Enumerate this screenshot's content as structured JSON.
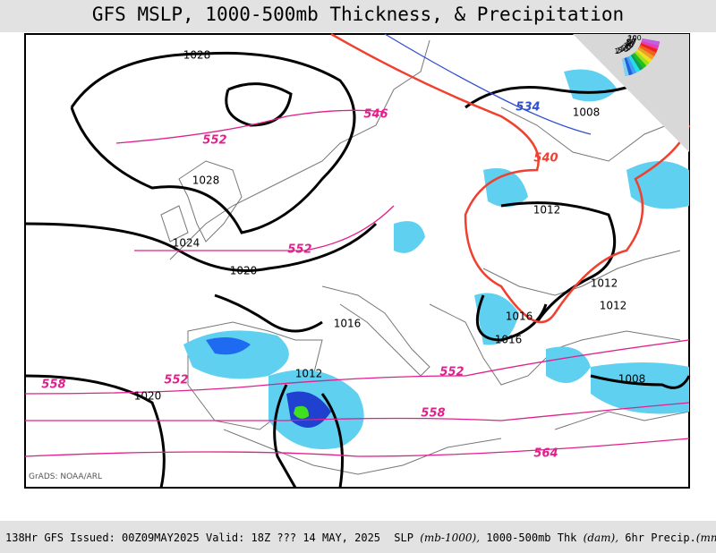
{
  "header": {
    "title": "GFS MSLP, 1000-500mb Thickness, & Precipitation"
  },
  "map": {
    "credit": "GrADS: NOAA/ARL",
    "pressure_labels": [
      "1028",
      "1028",
      "1024",
      "1020",
      "1016",
      "1012",
      "1020",
      "1008",
      "1012",
      "1012",
      "1012",
      "1016",
      "1016",
      "1008"
    ],
    "thickness_labels": [
      "546",
      "552",
      "552",
      "552",
      "558",
      "558",
      "552",
      "564"
    ],
    "cold_thickness_labels": [
      "534"
    ],
    "warm_thickness_labels": [
      "540"
    ]
  },
  "legend": {
    "values": [
      "100",
      "75",
      "60",
      "50",
      "40",
      "30",
      "25",
      "20",
      "15",
      "10",
      "5",
      "2",
      "1"
    ]
  },
  "footer": {
    "run": "138Hr GFS Issued: 00Z09MAY2025 Valid: 18Z ??? 14 MAY, 2025",
    "slp": "SLP",
    "slp_unit": "(mb-1000),",
    "thk": "1000-500mb Thk",
    "thk_unit": "(dam),",
    "precip": "6hr Precip.",
    "precip_unit": "(mm)"
  }
}
